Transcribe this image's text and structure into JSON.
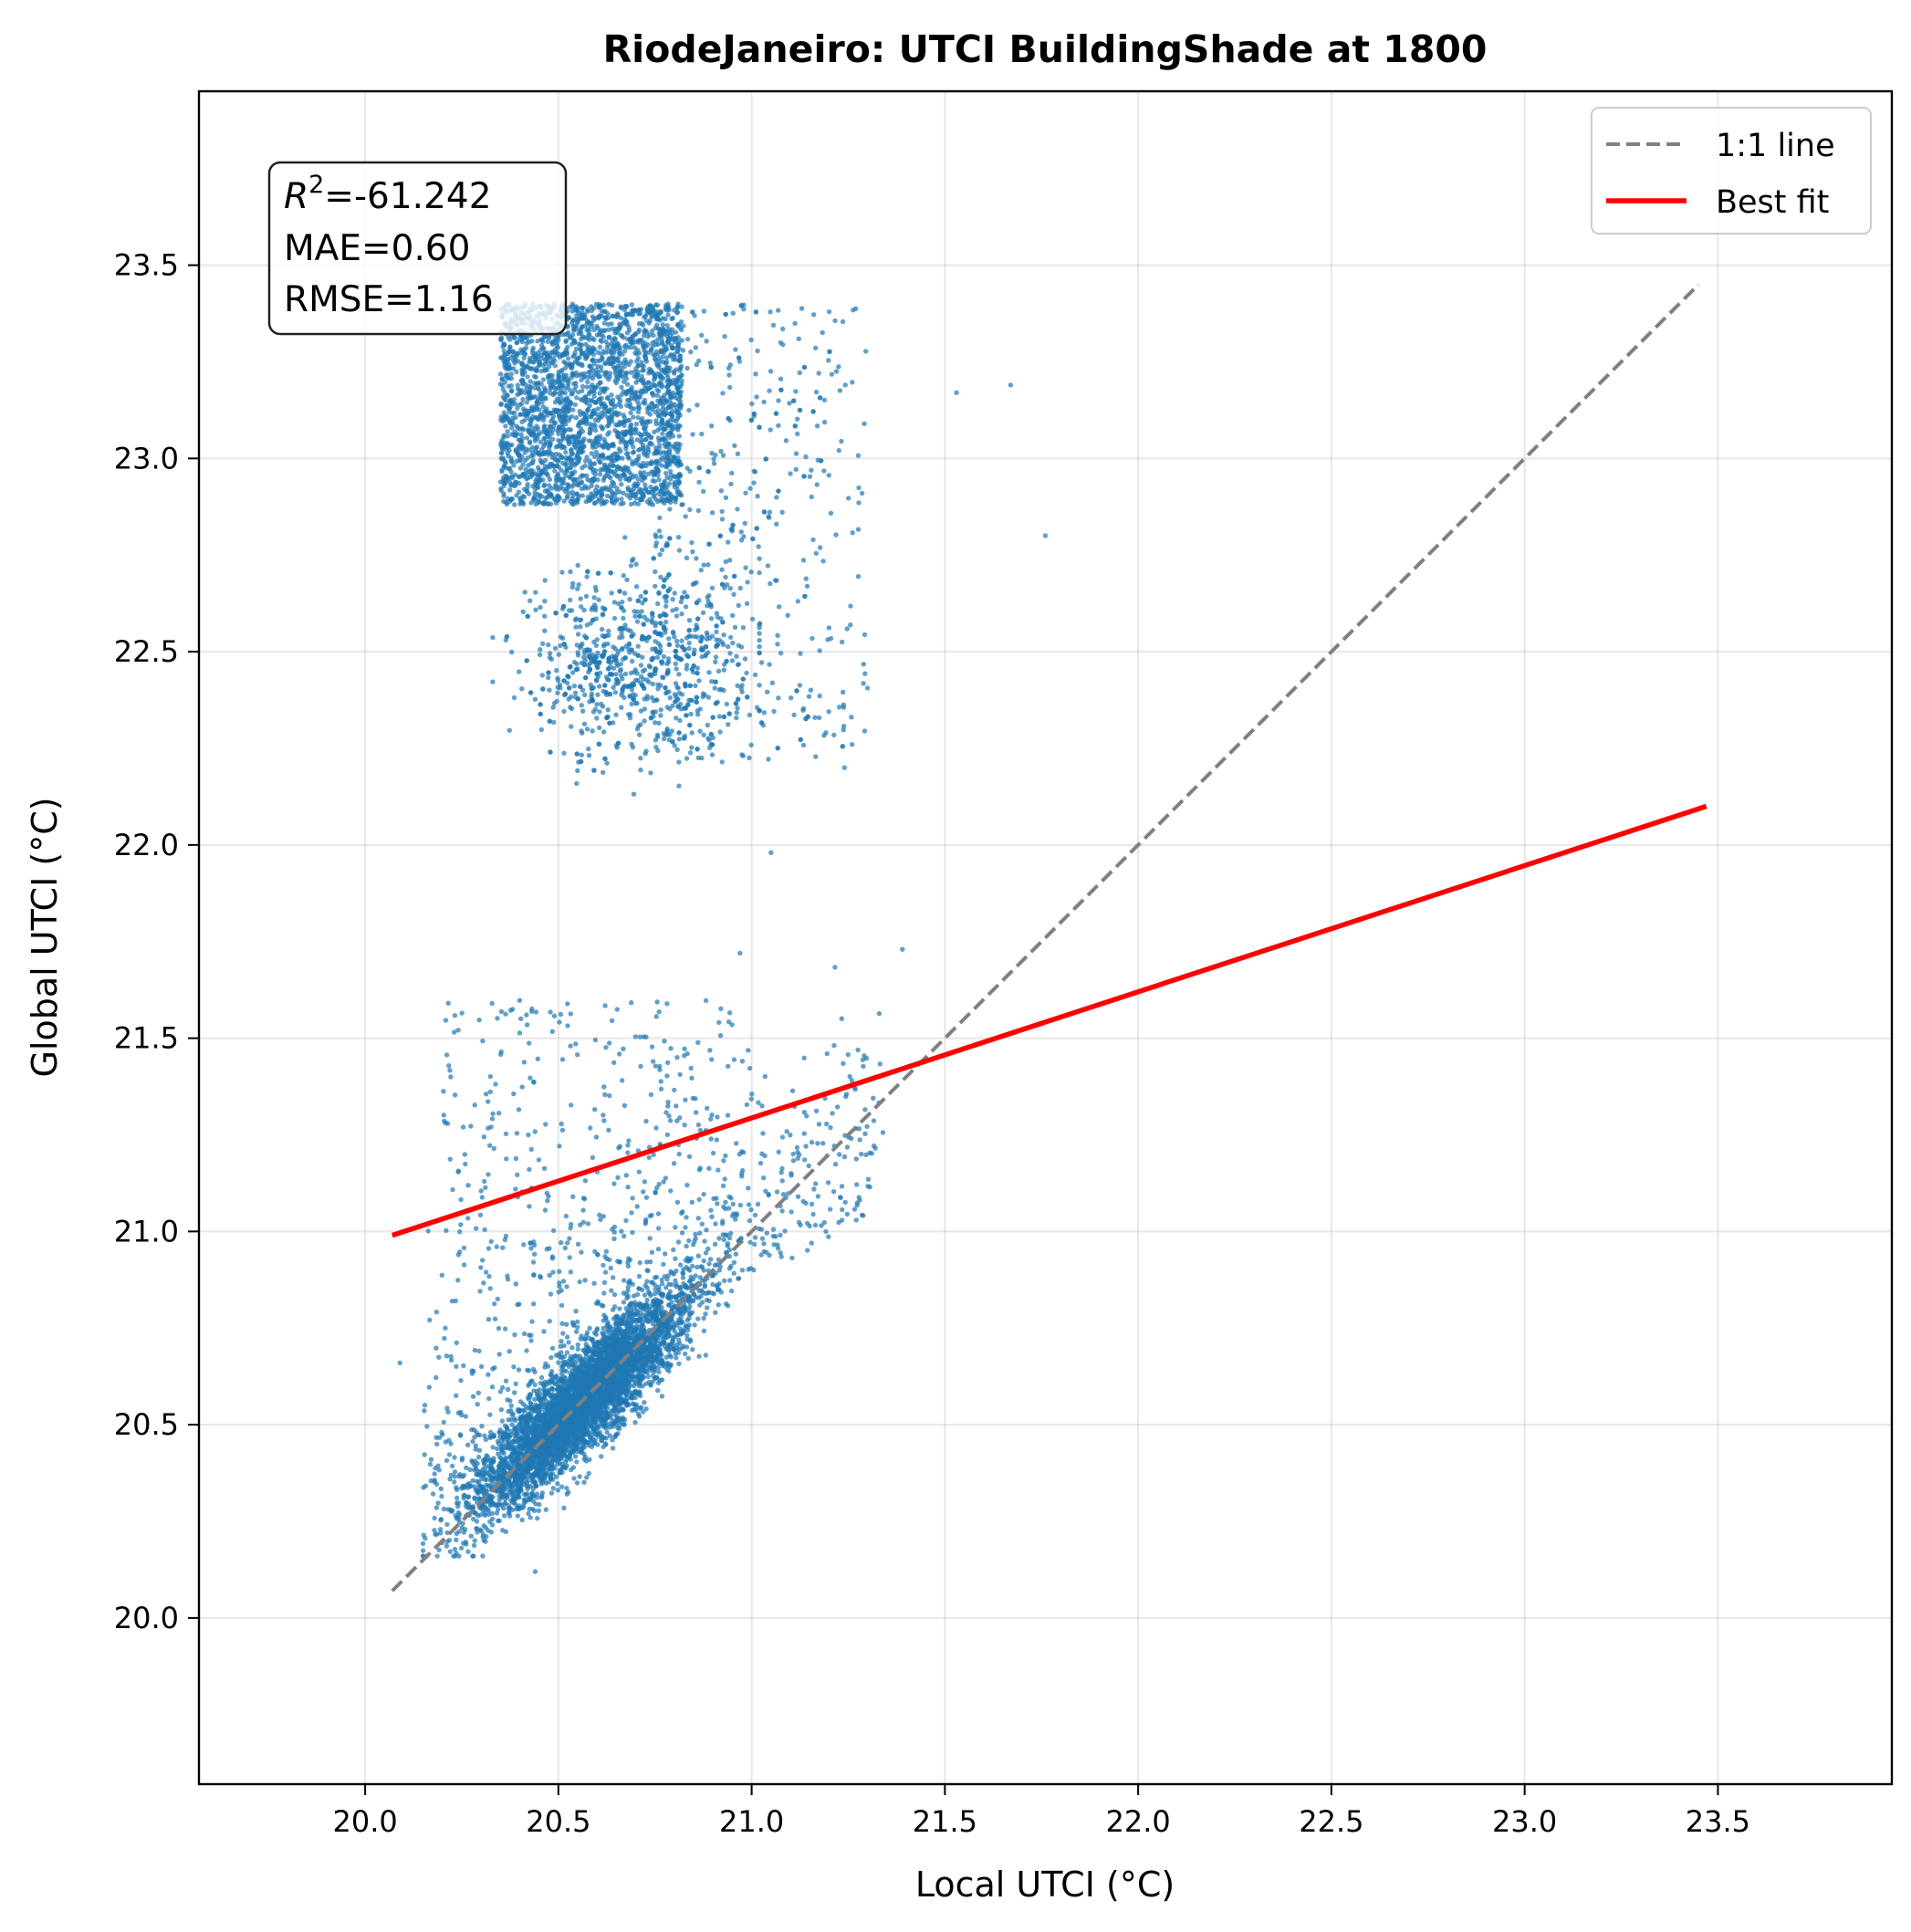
{
  "chart_data": {
    "type": "scatter",
    "title": "RiodeJaneiro: UTCI BuildingShade at 1800",
    "xlabel": "Local UTCI (°C)",
    "ylabel": "Global UTCI (°C)",
    "xlim": [
      19.57,
      23.95
    ],
    "ylim": [
      19.57,
      23.95
    ],
    "x_ticks": [
      "20.0",
      "20.5",
      "21.0",
      "21.5",
      "22.0",
      "22.5",
      "23.0",
      "23.5"
    ],
    "y_ticks": [
      "20.0",
      "20.5",
      "21.0",
      "21.5",
      "22.0",
      "22.5",
      "23.0",
      "23.5"
    ],
    "grid": true,
    "legend": {
      "placement": "top-right",
      "entries": [
        "1:1 line",
        "Best fit"
      ]
    },
    "stats": {
      "r2_label": "R",
      "r2_sup": "2",
      "r2_value": "=-61.242",
      "mae": "MAE=0.60",
      "rmse": "RMSE=1.16"
    },
    "series": [
      {
        "name": "1:1 line",
        "type": "line",
        "style": "dashed",
        "color": "#808080",
        "x": [
          20.07,
          23.45
        ],
        "y": [
          20.07,
          23.45
        ]
      },
      {
        "name": "Best fit",
        "type": "line",
        "style": "solid",
        "color": "#ff0000",
        "x": [
          20.07,
          23.47
        ],
        "y": [
          20.99,
          22.1
        ]
      },
      {
        "type": "scatter",
        "color": "#1f77b4",
        "clusters": [
          {
            "label": "upper dense block",
            "x_range": [
              20.35,
              20.82
            ],
            "y_range": [
              22.88,
              23.4
            ],
            "count": 2600
          },
          {
            "label": "upper spread",
            "x_range": [
              20.33,
              21.3
            ],
            "y_range": [
              21.95,
              23.42
            ],
            "count": 1300
          },
          {
            "label": "lower dense band",
            "x_center": 20.6,
            "y_center": 20.6,
            "count": 4800
          },
          {
            "label": "lower spread",
            "x_range": [
              20.08,
              21.4
            ],
            "y_range": [
              20.1,
              21.7
            ],
            "count": 900
          }
        ],
        "outliers": [
          [
            21.67,
            23.19
          ],
          [
            21.53,
            23.17
          ],
          [
            21.76,
            22.8
          ],
          [
            21.39,
            21.73
          ],
          [
            20.97,
            21.72
          ],
          [
            21.05,
            21.98
          ],
          [
            21.24,
            22.2
          ],
          [
            21.26,
            22.26
          ],
          [
            20.44,
            20.12
          ],
          [
            20.09,
            20.66
          ]
        ]
      }
    ]
  }
}
